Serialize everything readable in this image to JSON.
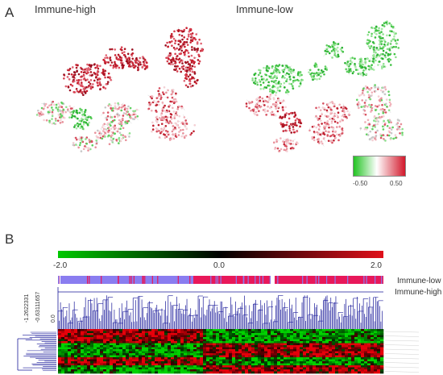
{
  "panelA": {
    "label": "A",
    "left_title": "Immune-high",
    "right_title": "Immune-low",
    "colorbar": {
      "min_label": "-0.50",
      "max_label": "0.50",
      "colors": [
        "#22c322",
        "#ffffff",
        "#d2182b"
      ]
    }
  },
  "panelB": {
    "label": "B",
    "colorbar": {
      "min_label": "-2.0",
      "mid_label": "0.0",
      "max_label": "2.0",
      "colors": [
        "#00c800",
        "#000000",
        "#e0101a"
      ]
    },
    "group_labels": {
      "low": "Immune-low",
      "high": "Immune-high"
    },
    "group_colors": {
      "high": "#e8185a",
      "low": "#8a7df0"
    },
    "dendrogram_scale": [
      "-1.2622331",
      "-0.63111657",
      "0.0"
    ]
  }
}
